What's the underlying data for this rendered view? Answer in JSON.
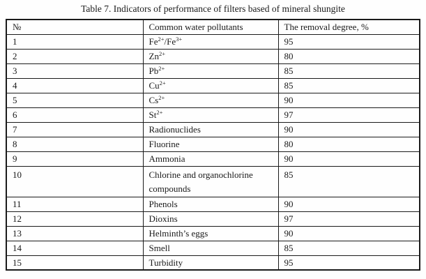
{
  "table": {
    "title": "Table 7. Indicators of performance of filters based of mineral shungite",
    "columns": [
      "№",
      "Common water pollutants",
      "The removal degree, %"
    ],
    "rows": [
      {
        "no": "1",
        "pollutant": "Fe^{2+}/Fe^{3+}",
        "removal": "95"
      },
      {
        "no": "2",
        "pollutant": "Zn^{2+}",
        "removal": "80"
      },
      {
        "no": "3",
        "pollutant": "Pb^{2+}",
        "removal": "85"
      },
      {
        "no": "4",
        "pollutant": "Cu^{2+}",
        "removal": "85"
      },
      {
        "no": "5",
        "pollutant": "Cs^{2+}",
        "removal": "90"
      },
      {
        "no": "6",
        "pollutant": "St^{2+}",
        "removal": "97"
      },
      {
        "no": "7",
        "pollutant": "Radionuclides",
        "removal": "90"
      },
      {
        "no": "8",
        "pollutant": "Fluorine",
        "removal": "80"
      },
      {
        "no": "9",
        "pollutant": "Ammonia",
        "removal": "90"
      },
      {
        "no": "10",
        "pollutant": "Chlorine and organochlorine compounds",
        "removal": "85"
      },
      {
        "no": "11",
        "pollutant": "Phenols",
        "removal": "90"
      },
      {
        "no": "12",
        "pollutant": "Dioxins",
        "removal": "97"
      },
      {
        "no": "13",
        "pollutant": "Helminth’s eggs",
        "removal": "90"
      },
      {
        "no": "14",
        "pollutant": "Smell",
        "removal": "85"
      },
      {
        "no": "15",
        "pollutant": "Turbidity",
        "removal": "95"
      }
    ],
    "colors": {
      "text": "#1a1a1a",
      "border": "#1a1a1a",
      "background": "#fefefe"
    }
  }
}
